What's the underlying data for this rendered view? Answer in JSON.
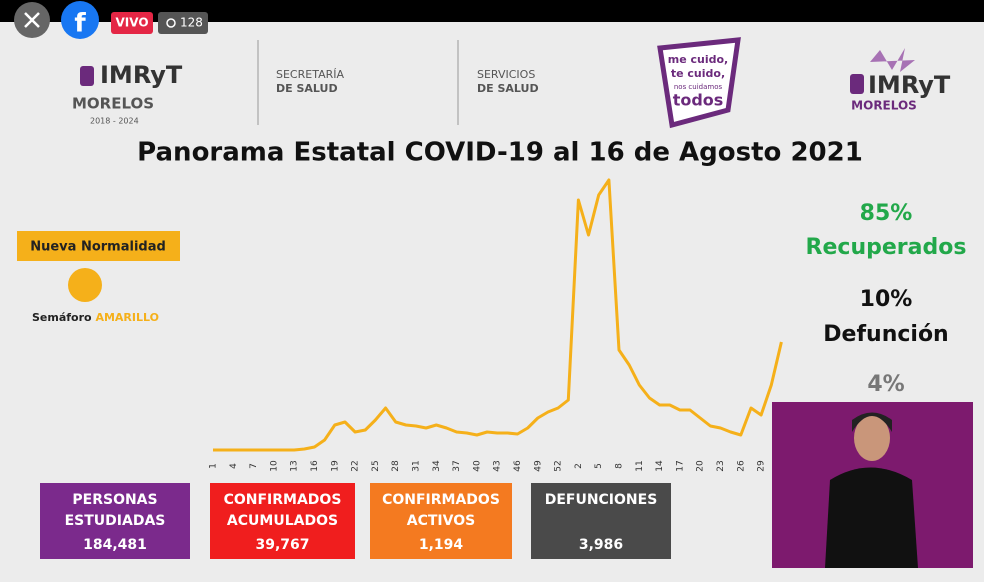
{
  "top_bar": {
    "live": "VIVO",
    "viewers": "128"
  },
  "header": {
    "logo_left": {
      "name": "IMRyT",
      "state": "MORELOS",
      "years": "2018 - 2024"
    },
    "secretaria": [
      "SECRETARÍA",
      "DE SALUD"
    ],
    "servicios": [
      "SERVICIOS",
      "DE SALUD"
    ],
    "slogan": [
      "me cuido,",
      "te cuido,",
      "nos cuidamos",
      "todos"
    ],
    "logo_right": {
      "name": "IMRyT",
      "state": "MORELOS"
    },
    "title": "Panorama Estatal COVID-19 al 16 de Agosto 2021"
  },
  "status": {
    "phase": "Nueva Normalidad",
    "semaforo": "Semáforo",
    "color_name": "AMARILLO"
  },
  "rates": [
    {
      "value": "85%",
      "label": "Recuperados"
    },
    {
      "value": "10%",
      "label": "Defunción"
    },
    {
      "value": "4%"
    }
  ],
  "chart_data": {
    "type": "line",
    "color": "#f5b01a",
    "categories": [
      "1",
      null,
      "4",
      null,
      "7",
      null,
      "10",
      null,
      "13",
      null,
      "16",
      null,
      "19",
      null,
      "22",
      null,
      "25",
      null,
      "28",
      null,
      "31",
      null,
      "34",
      null,
      "37",
      null,
      "40",
      null,
      "43",
      null,
      "46",
      null,
      "49",
      null,
      "52",
      null,
      "2",
      null,
      "5",
      null,
      "8",
      null,
      "11",
      null,
      "14",
      null,
      "17",
      null,
      "20",
      null,
      "23",
      null,
      "26",
      null,
      "29",
      null,
      null
    ],
    "values": [
      0,
      0,
      0,
      0,
      0,
      0,
      0,
      0,
      0,
      1,
      3,
      10,
      25,
      28,
      18,
      20,
      30,
      42,
      28,
      25,
      24,
      22,
      25,
      22,
      18,
      17,
      15,
      18,
      17,
      17,
      16,
      22,
      32,
      38,
      42,
      50,
      250,
      215,
      255,
      270,
      100,
      85,
      65,
      52,
      45,
      45,
      40,
      40,
      32,
      24,
      22,
      18,
      15,
      42,
      35,
      65,
      108
    ]
  },
  "boxes": [
    {
      "label": [
        "PERSONAS",
        "ESTUDIADAS"
      ],
      "value": "184,481",
      "color": "#7b2a8c"
    },
    {
      "label": [
        "CONFIRMADOS",
        "ACUMULADOS"
      ],
      "value": "39,767",
      "color": "#f01e1e"
    },
    {
      "label": [
        "CONFIRMADOS",
        "ACTIVOS"
      ],
      "value": "1,194",
      "color": "#f47a20"
    },
    {
      "label": [
        "DEFUNCIONES"
      ],
      "value": "3,986",
      "color": "#4a4a4a"
    }
  ]
}
